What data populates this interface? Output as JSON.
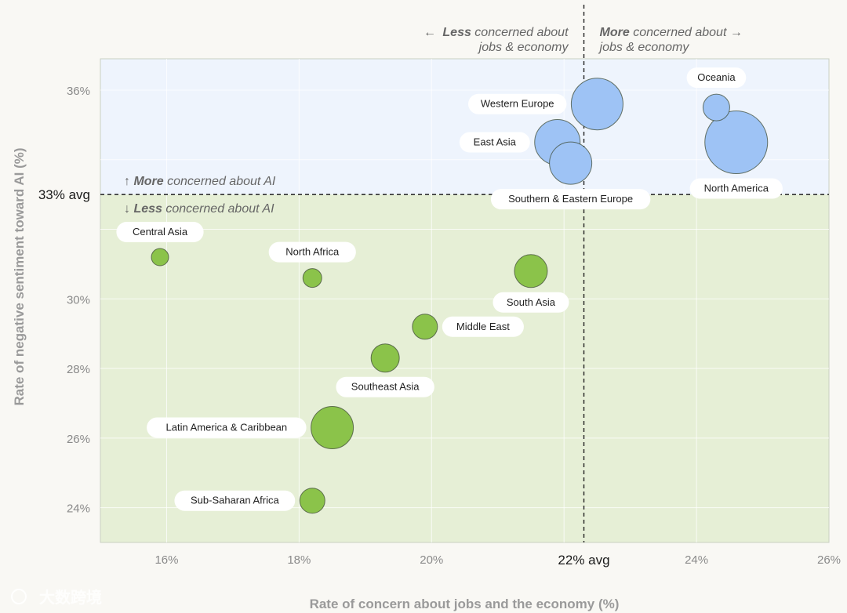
{
  "chart_data": {
    "type": "scatter",
    "xlabel": "Rate of concern about jobs and the economy (%)",
    "ylabel": "Rate of negative sentiment toward AI (%)",
    "xlim": [
      15,
      26
    ],
    "ylim": [
      23,
      36.9
    ],
    "x_ticks": [
      {
        "value": 16,
        "label": "16%"
      },
      {
        "value": 18,
        "label": "18%"
      },
      {
        "value": 20,
        "label": "20%"
      },
      {
        "value": 24,
        "label": "24%"
      },
      {
        "value": 26,
        "label": "26%"
      }
    ],
    "y_ticks": [
      {
        "value": 36,
        "label": "36%"
      },
      {
        "value": 30,
        "label": "30%"
      },
      {
        "value": 28,
        "label": "28%"
      },
      {
        "value": 26,
        "label": "26%"
      },
      {
        "value": 24,
        "label": "24%"
      }
    ],
    "x_avg": {
      "value": 22.3,
      "label": "22% avg"
    },
    "y_avg": {
      "value": 33.0,
      "label": "33% avg"
    },
    "colors": {
      "above": "#9ec3f5",
      "below": "#8bc34a",
      "above_bg": "#eef4fd",
      "below_bg": "#e6efd6"
    },
    "annotations": {
      "left_arrow": "←",
      "left_bold": "Less",
      "left_rest": " concerned about",
      "left_line2": "jobs & economy",
      "right_bold": "More",
      "right_rest": " concerned about →",
      "right_line2": "jobs & economy",
      "up_arrow": "↑ ",
      "up_bold": "More",
      "up_rest": " concerned about AI",
      "down_arrow": "↓ ",
      "down_bold": "Less",
      "down_rest": " concerned about AI"
    },
    "series": [
      {
        "name": "Western Europe",
        "x": 22.5,
        "y": 35.6,
        "size": 33,
        "group": "above",
        "label_pos": "left"
      },
      {
        "name": "Oceania",
        "x": 24.3,
        "y": 35.5,
        "size": 17,
        "group": "above",
        "label_pos": "top"
      },
      {
        "name": "North America",
        "x": 24.6,
        "y": 34.5,
        "size": 40,
        "group": "above",
        "label_pos": "bottom"
      },
      {
        "name": "East Asia",
        "x": 21.9,
        "y": 34.5,
        "size": 29,
        "group": "above",
        "label_pos": "left"
      },
      {
        "name": "Southern & Eastern Europe",
        "x": 22.1,
        "y": 33.9,
        "size": 27,
        "group": "above",
        "label_pos": "bottom"
      },
      {
        "name": "Central Asia",
        "x": 15.9,
        "y": 31.2,
        "size": 11,
        "group": "below",
        "label_pos": "top"
      },
      {
        "name": "North Africa",
        "x": 18.2,
        "y": 30.6,
        "size": 12,
        "group": "below",
        "label_pos": "top"
      },
      {
        "name": "South Asia",
        "x": 21.5,
        "y": 30.8,
        "size": 21,
        "group": "below",
        "label_pos": "bottom"
      },
      {
        "name": "Middle East",
        "x": 19.9,
        "y": 29.2,
        "size": 16,
        "group": "below",
        "label_pos": "right"
      },
      {
        "name": "Southeast Asia",
        "x": 19.3,
        "y": 28.3,
        "size": 18,
        "group": "below",
        "label_pos": "bottom"
      },
      {
        "name": "Latin America & Caribbean",
        "x": 18.5,
        "y": 26.3,
        "size": 27,
        "group": "below",
        "label_pos": "left"
      },
      {
        "name": "Sub-Saharan Africa",
        "x": 18.2,
        "y": 24.2,
        "size": 16,
        "group": "below",
        "label_pos": "left"
      }
    ]
  },
  "watermark": {
    "text": "大数跨境"
  }
}
